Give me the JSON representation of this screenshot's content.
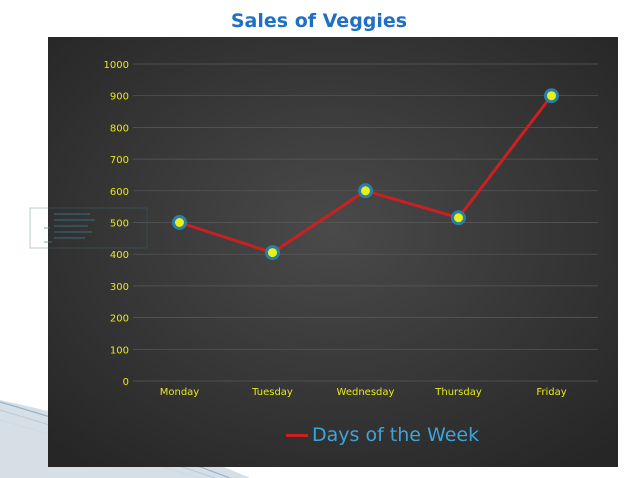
{
  "chart_data": {
    "type": "line",
    "title": "Sales of Veggies",
    "categories": [
      "Monday",
      "Tuesday",
      "Wednesday",
      "Thursday",
      "Friday"
    ],
    "series": [
      {
        "name": "Days of the Week",
        "values": [
          500,
          405,
          600,
          515,
          900
        ],
        "color": "#cc1f1f"
      }
    ],
    "ylim": [
      0,
      1000
    ],
    "yticks": [
      0,
      100,
      200,
      300,
      400,
      500,
      600,
      700,
      800,
      900,
      1000
    ],
    "grid": true,
    "legend": "bottom",
    "marker_fill": "#e8f01a",
    "marker_stroke": "#2a7fa8",
    "tick_color": "#e8e81a",
    "background": "#333333"
  }
}
